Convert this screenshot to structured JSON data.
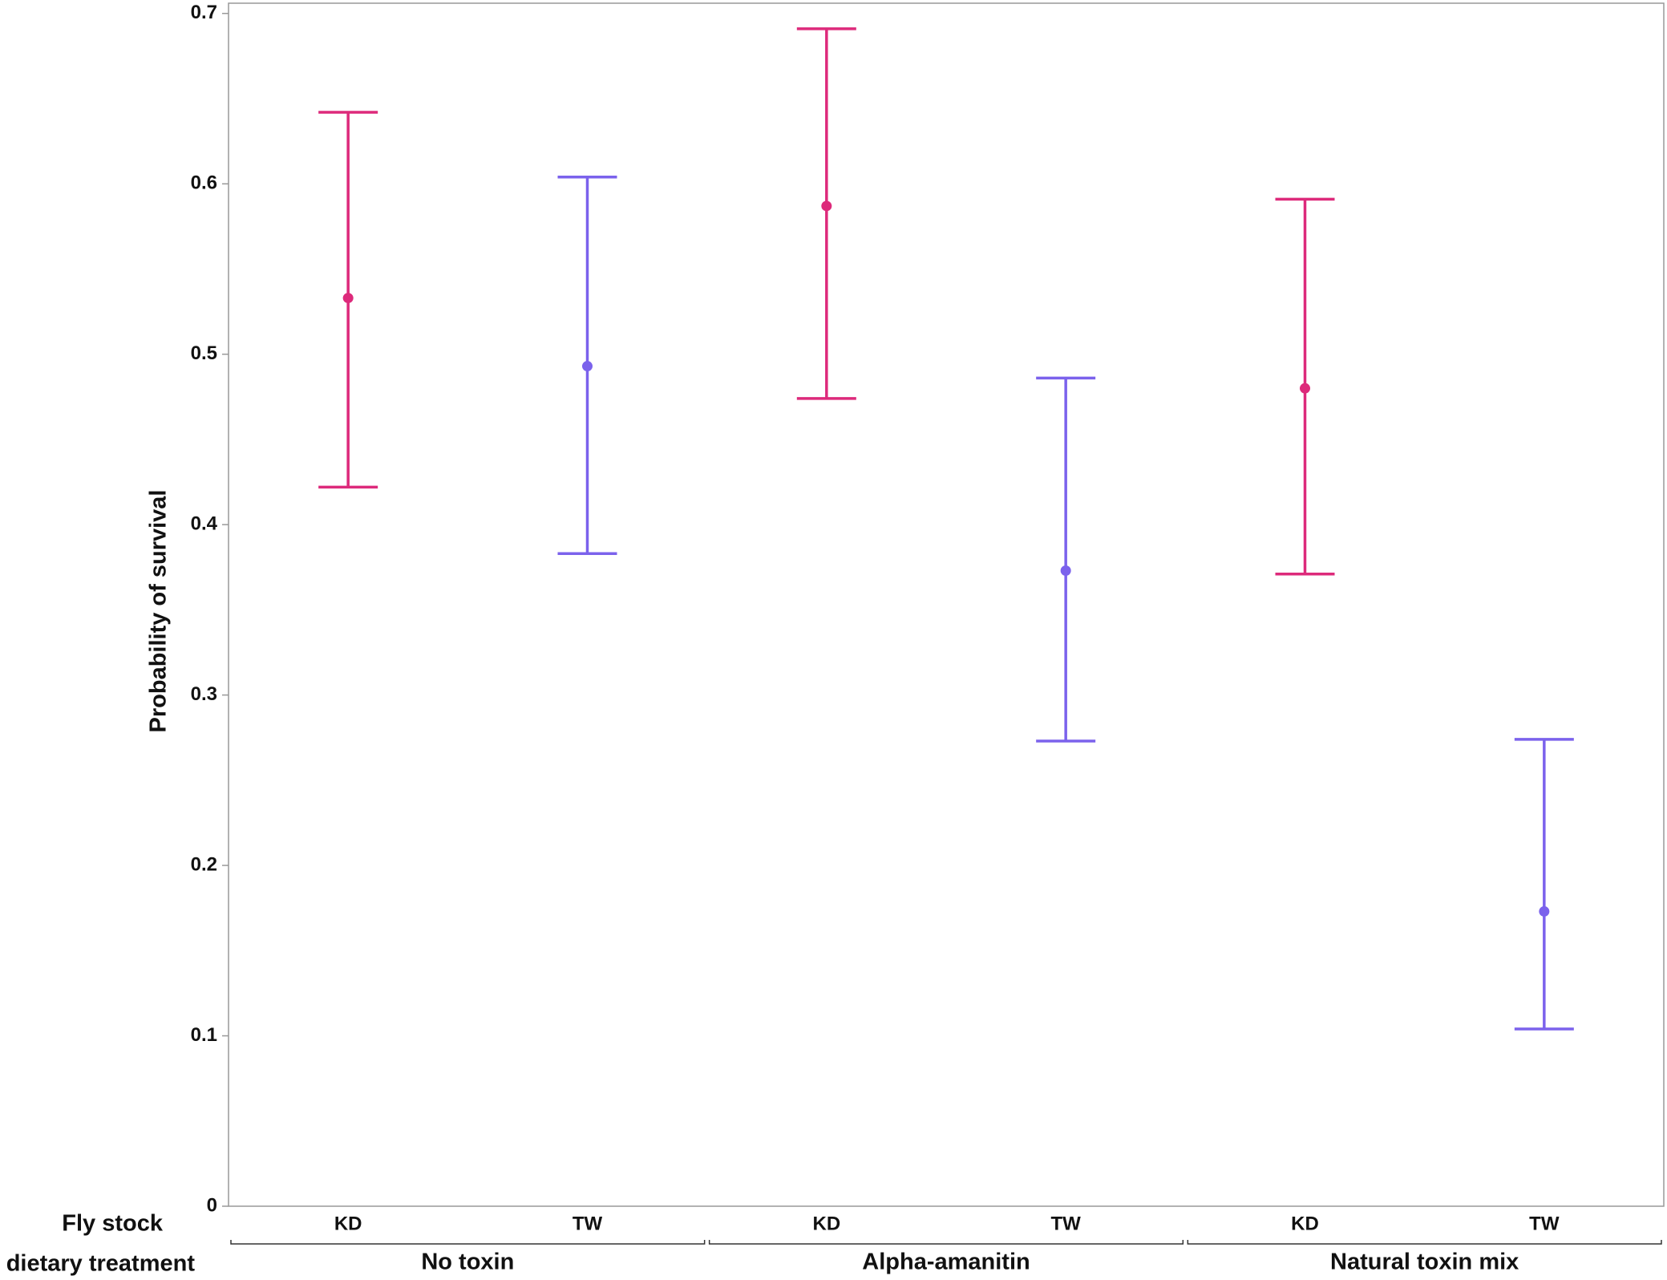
{
  "chart_data": {
    "type": "errorbar",
    "y_label": "Probability of survival",
    "x_label": "Fly stock",
    "group_label": "dietary treatment",
    "categories": [
      "KD",
      "TW",
      "KD",
      "TW",
      "KD",
      "TW"
    ],
    "groups": [
      "No toxin",
      "Alpha-amanitin",
      "Natural toxin mix"
    ],
    "values": [
      0.533,
      0.493,
      0.587,
      0.373,
      0.48,
      0.173
    ],
    "lower": [
      0.422,
      0.383,
      0.474,
      0.273,
      0.371,
      0.104
    ],
    "upper": [
      0.642,
      0.604,
      0.691,
      0.486,
      0.591,
      0.274
    ],
    "colors": [
      "#dd2a7b",
      "#7b62ec",
      "#dd2a7b",
      "#7b62ec",
      "#dd2a7b",
      "#7b62ec"
    ],
    "ylim": [
      0,
      0.706
    ],
    "yticks": [
      0,
      0.1,
      0.2,
      0.3,
      0.4,
      0.5,
      0.6,
      0.7
    ]
  }
}
